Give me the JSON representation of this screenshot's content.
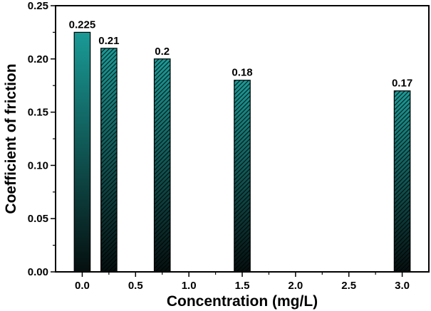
{
  "chart_data": {
    "type": "bar",
    "xlabel": "Concentration (mg/L)",
    "ylabel": "Coefficient of friction",
    "xlim": [
      -0.25,
      3.25
    ],
    "ylim": [
      0,
      0.25
    ],
    "x_ticks": [
      0.0,
      0.5,
      1.0,
      1.5,
      2.0,
      2.5,
      3.0
    ],
    "x_tick_labels": [
      "0.0",
      "0.5",
      "1.0",
      "1.5",
      "2.0",
      "2.5",
      "3.0"
    ],
    "y_ticks": [
      0.0,
      0.05,
      0.1,
      0.15,
      0.2,
      0.25
    ],
    "y_tick_labels": [
      "0.00",
      "0.05",
      "0.10",
      "0.15",
      "0.20",
      "0.25"
    ],
    "bar_width": 0.15,
    "bars": [
      {
        "x": 0.0,
        "value": 0.225,
        "label": "0.225",
        "hatched": false
      },
      {
        "x": 0.25,
        "value": 0.21,
        "label": "0.21",
        "hatched": true
      },
      {
        "x": 0.75,
        "value": 0.2,
        "label": "0.2",
        "hatched": true
      },
      {
        "x": 1.5,
        "value": 0.18,
        "label": "0.18",
        "hatched": true
      },
      {
        "x": 3.0,
        "value": 0.17,
        "label": "0.17",
        "hatched": true
      }
    ],
    "colors": {
      "bar_top": "#1a9a96",
      "bar_bottom": "#050f0f",
      "axis": "#000000"
    },
    "grid": false,
    "legend": "none"
  }
}
